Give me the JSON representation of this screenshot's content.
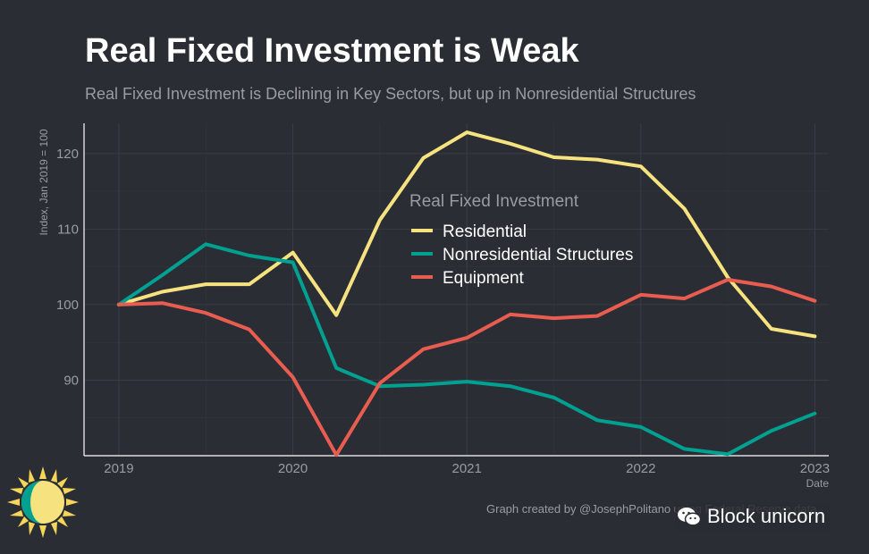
{
  "title": "Real Fixed Investment is Weak",
  "subtitle": "Real Fixed Investment is Declining in Key Sectors, but up in Nonresidential Structures",
  "caption": "Graph created by @JosephPolitano using Federal Reserve data",
  "watermark": {
    "text": "Block unicorn",
    "icon": "wechat-icon"
  },
  "logo_icon": "sun-logo-icon",
  "colors": {
    "background": "#2a2d34",
    "grid": "#3a3d45",
    "axis": "#ffffff",
    "muted_text": "#9a9ca3"
  },
  "chart_data": {
    "type": "line",
    "title": "Real Fixed Investment is Weak",
    "xlabel": "Date",
    "ylabel": "Index, Jan 2019 = 100",
    "xlim": [
      2018.8,
      2023.08
    ],
    "ylim": [
      80,
      124
    ],
    "x_ticks": [
      2019,
      2020,
      2021,
      2022,
      2023
    ],
    "x_tick_labels": [
      "2019",
      "2020",
      "2021",
      "2022",
      "2023"
    ],
    "y_ticks": [
      90,
      100,
      110,
      120
    ],
    "y_tick_labels": [
      "90",
      "100",
      "110",
      "120"
    ],
    "grid": true,
    "legend": {
      "title": "Real Fixed Investment",
      "placement": "center-top"
    },
    "x": [
      2019.0,
      2019.25,
      2019.5,
      2019.75,
      2020.0,
      2020.25,
      2020.5,
      2020.75,
      2021.0,
      2021.25,
      2021.5,
      2021.75,
      2022.0,
      2022.25,
      2022.5,
      2022.75,
      2023.0
    ],
    "series": [
      {
        "name": "Residential",
        "color": "#f6e27f",
        "values": [
          100.0,
          101.7,
          102.7,
          102.7,
          106.9,
          98.6,
          111.2,
          119.4,
          122.8,
          121.3,
          119.5,
          119.2,
          118.3,
          112.7,
          103.6,
          96.8,
          95.8
        ]
      },
      {
        "name": "Nonresidential Structures",
        "color": "#00a191",
        "values": [
          100.0,
          103.9,
          108.0,
          106.5,
          105.6,
          91.6,
          89.2,
          89.4,
          89.8,
          89.2,
          87.7,
          84.7,
          83.8,
          80.9,
          80.2,
          83.3,
          85.6
        ]
      },
      {
        "name": "Equipment",
        "color": "#e95d50",
        "values": [
          100.0,
          100.2,
          98.9,
          96.7,
          90.4,
          80.1,
          89.6,
          94.1,
          95.6,
          98.7,
          98.2,
          98.5,
          101.3,
          100.8,
          103.3,
          102.4,
          100.5
        ]
      }
    ]
  }
}
